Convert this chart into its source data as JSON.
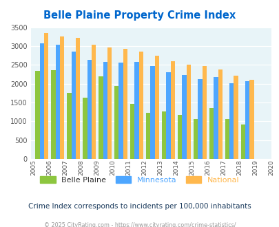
{
  "title": "Belle Plaine Property Crime Index",
  "years": [
    2005,
    2006,
    2007,
    2008,
    2009,
    2010,
    2011,
    2012,
    2013,
    2014,
    2015,
    2016,
    2017,
    2018,
    2019,
    2020
  ],
  "belle_plaine": [
    null,
    2340,
    2360,
    1760,
    1620,
    2200,
    1940,
    1470,
    1220,
    1270,
    1170,
    1060,
    1350,
    1060,
    920,
    null
  ],
  "minnesota": [
    null,
    3080,
    3040,
    2860,
    2640,
    2580,
    2560,
    2580,
    2460,
    2310,
    2240,
    2130,
    2180,
    2010,
    2070,
    null
  ],
  "national": [
    null,
    3340,
    3260,
    3220,
    3040,
    2960,
    2920,
    2860,
    2740,
    2600,
    2500,
    2470,
    2370,
    2210,
    2110,
    null
  ],
  "colors": {
    "belle_plaine": "#8dc63f",
    "minnesota": "#4da6ff",
    "national": "#ffb84d"
  },
  "ylim": [
    0,
    3500
  ],
  "yticks": [
    0,
    500,
    1000,
    1500,
    2000,
    2500,
    3000,
    3500
  ],
  "background_color": "#e8f4f8",
  "title_color": "#0066cc",
  "subtitle": "Crime Index corresponds to incidents per 100,000 inhabitants",
  "footer": "© 2025 CityRating.com - https://www.cityrating.com/crime-statistics/",
  "legend_labels": [
    "Belle Plaine",
    "Minnesota",
    "National"
  ]
}
